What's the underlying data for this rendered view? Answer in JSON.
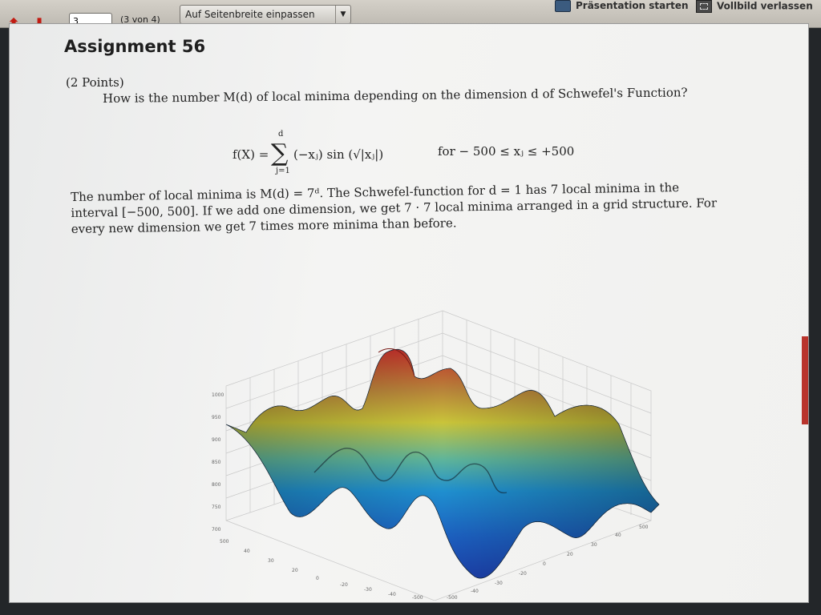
{
  "toolbar": {
    "page_input_value": "3",
    "page_count": "(3 von 4)",
    "zoom_label": "Auf Seitenbreite einpassen",
    "present_label": "Präsentation starten",
    "exit_fullscreen_label": "Vollbild verlassen",
    "icons": [
      "arrow-up-icon",
      "arrow-down-icon",
      "chevron-down-icon",
      "presentation-icon",
      "fullscreen-exit-icon"
    ]
  },
  "slide": {
    "title": "Assignment 56",
    "points": "(2 Points)",
    "question": "How is the number M(d) of local minima depending on the dimension d of Schwefel's Function?",
    "formula": {
      "lhs": "f(X) =",
      "sum_upper": "d",
      "sum_lower": "j=1",
      "body": "(−xⱼ) sin (√|xⱼ|)",
      "range": "for  − 500 ≤ xⱼ ≤ +500"
    },
    "answer_lines": [
      "The number of local minima is M(d) = 7ᵈ. The Schwefel-function for d = 1 has 7 local minima in the",
      "interval [−500, 500]. If we add one dimension, we get 7 · 7 local minima arranged in a grid structure. For",
      "every new dimension we get 7 times more minima than before."
    ]
  },
  "plot": {
    "z_ticks": [
      "1000",
      "950",
      "900",
      "850",
      "800",
      "750",
      "700"
    ],
    "front_ticks_left": [
      "500",
      "40",
      "30",
      "20",
      "0",
      "-20",
      "-30",
      "-40",
      "-500"
    ],
    "front_ticks_right": [
      "500",
      "40",
      "30",
      "20",
      "0",
      "-20",
      "-30",
      "-40",
      "-500"
    ],
    "colors": {
      "high": "#c0302a",
      "mid": "#c9c43a",
      "low": "#1f8fcf",
      "deep": "#1c3fa8"
    }
  }
}
